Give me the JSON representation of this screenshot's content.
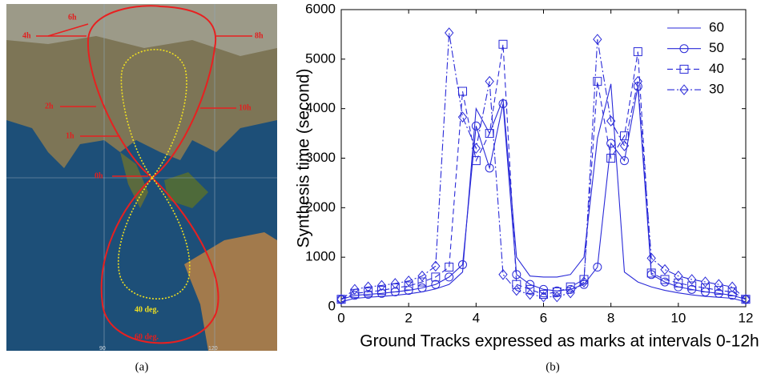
{
  "chart_data": {
    "type": "line",
    "xlabel": "Ground Tracks expressed as marks at intervals 0-12h",
    "ylabel": "Synthesis time (second)",
    "x": [
      0,
      0.4,
      0.8,
      1.2,
      1.6,
      2,
      2.4,
      2.8,
      3.2,
      3.6,
      4,
      4.4,
      4.8,
      5.2,
      5.6,
      6,
      6.4,
      6.8,
      7.2,
      7.6,
      8,
      8.4,
      8.8,
      9.2,
      9.6,
      10,
      10.4,
      10.8,
      11.2,
      11.6,
      12
    ],
    "series": [
      {
        "name": "60",
        "color": "#2a2ad8",
        "dash": "solid",
        "marker": "none",
        "values": [
          100,
          170,
          190,
          210,
          230,
          260,
          300,
          360,
          450,
          700,
          4000,
          3500,
          4200,
          1000,
          620,
          600,
          600,
          650,
          1000,
          3400,
          4500,
          700,
          500,
          400,
          330,
          280,
          240,
          210,
          190,
          170,
          100
        ]
      },
      {
        "name": "50",
        "color": "#2a2ad8",
        "dash": "solid",
        "marker": "circle",
        "values": [
          150,
          230,
          250,
          270,
          300,
          330,
          380,
          450,
          600,
          850,
          3650,
          2800,
          4100,
          650,
          450,
          350,
          320,
          350,
          450,
          800,
          3300,
          2950,
          4450,
          650,
          500,
          400,
          350,
          300,
          270,
          230,
          150
        ]
      },
      {
        "name": "40",
        "color": "#2a2ad8",
        "dash": "dashed",
        "marker": "square",
        "values": [
          150,
          270,
          300,
          330,
          380,
          420,
          500,
          600,
          800,
          4350,
          2950,
          3500,
          5300,
          450,
          350,
          250,
          300,
          400,
          550,
          4550,
          3000,
          3450,
          5150,
          680,
          550,
          480,
          420,
          380,
          330,
          300,
          150
        ]
      },
      {
        "name": "30",
        "color": "#2a2ad8",
        "dash": "dashdot",
        "marker": "diamond",
        "values": [
          150,
          350,
          400,
          430,
          470,
          520,
          620,
          820,
          5530,
          3830,
          3200,
          4550,
          650,
          330,
          250,
          200,
          200,
          280,
          500,
          5400,
          3750,
          3250,
          4550,
          980,
          750,
          620,
          550,
          500,
          450,
          400,
          150
        ]
      }
    ],
    "xlim": [
      0,
      12
    ],
    "xticks": [
      0,
      2,
      4,
      6,
      8,
      10,
      12
    ],
    "ylim": [
      0,
      6000
    ],
    "yticks": [
      0,
      1000,
      2000,
      3000,
      4000,
      5000,
      6000
    ],
    "grid": false,
    "legend": "upper right"
  },
  "map": {
    "labels": [
      "6h",
      "8h",
      "4h",
      "2h",
      "10h",
      "1h",
      "0h",
      "40 deg.",
      "60 deg."
    ],
    "graticule": [
      "90",
      "120"
    ]
  },
  "captions": [
    "(a)",
    "(b)"
  ]
}
